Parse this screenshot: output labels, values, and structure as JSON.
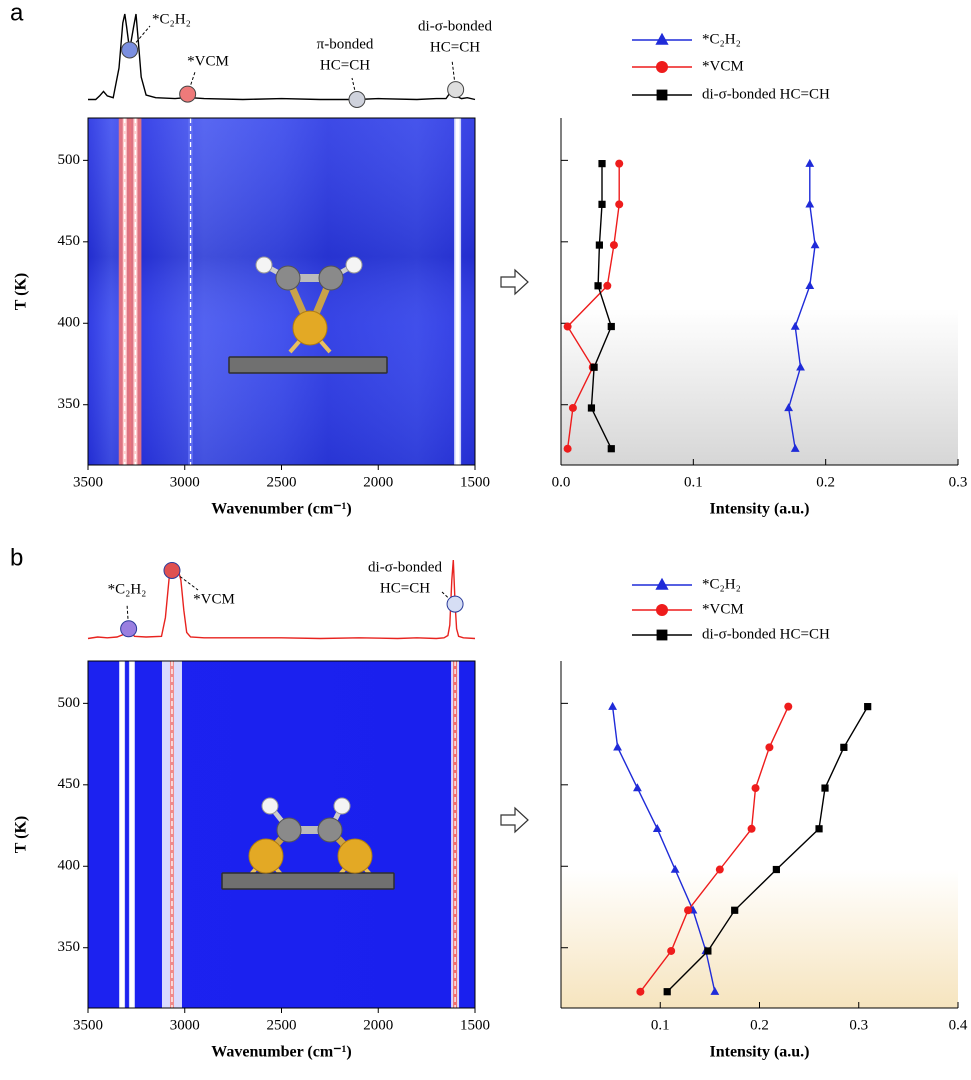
{
  "chart_data": [
    {
      "type": "heatmap",
      "panel_label": "a",
      "xlabel": "Wavenumber (cm⁻¹)",
      "ylabel": "T (K)",
      "xlim": [
        3500,
        1500
      ],
      "xticks": [
        3500,
        3000,
        2500,
        2000,
        1500
      ],
      "ylim": [
        313,
        526
      ],
      "yticks": [
        350,
        400,
        450,
        500
      ],
      "dashed_lines": [
        3310,
        3255,
        2970,
        1590
      ],
      "spectrum": {
        "color": "#000000",
        "x": [
          3500,
          3460,
          3440,
          3420,
          3400,
          3370,
          3340,
          3320,
          3310,
          3300,
          3285,
          3265,
          3252,
          3240,
          3225,
          3200,
          3150,
          3050,
          3000,
          2985,
          2970,
          2900,
          2700,
          2500,
          2300,
          2110,
          2000,
          1800,
          1700,
          1650,
          1630,
          1615,
          1600,
          1590,
          1570,
          1540,
          1500
        ],
        "values": [
          0.05,
          0.05,
          0.09,
          0.14,
          0.09,
          0.07,
          0.4,
          0.9,
          1.0,
          0.85,
          0.6,
          0.85,
          1.0,
          0.7,
          0.3,
          0.1,
          0.07,
          0.06,
          0.07,
          0.11,
          0.07,
          0.06,
          0.05,
          0.06,
          0.05,
          0.05,
          0.06,
          0.05,
          0.06,
          0.06,
          0.12,
          0.18,
          0.16,
          0.08,
          0.06,
          0.07,
          0.05
        ]
      },
      "annotations": [
        {
          "text": [
            "*C₂H₂"
          ],
          "x": 3285,
          "color": "#7b8fe0"
        },
        {
          "text": [
            "*VCM"
          ],
          "x": 2985,
          "color": "#ee7a7a"
        },
        {
          "text": [
            "π-bonded",
            "HC=CH"
          ],
          "x": 2110,
          "color": "#cfd2dc"
        },
        {
          "text": [
            "di-σ-bonded",
            "HC=CH"
          ],
          "x": 1600,
          "color": "#dedede"
        }
      ]
    },
    {
      "type": "line",
      "xlabel": "Intensity (a.u.)",
      "xlim": [
        0,
        0.3
      ],
      "xticks": [
        {
          "value": 0,
          "label": "0.0"
        },
        0.1,
        0.2,
        0.3
      ],
      "ylim": [
        313,
        526
      ],
      "yticks": [
        350,
        400,
        450,
        500
      ],
      "legend": "above",
      "y": [
        323,
        348,
        373,
        398,
        423,
        448,
        473,
        498
      ],
      "series": [
        {
          "name": "*C₂H₂",
          "color": "#1f2bd8",
          "marker": "triangle",
          "values": [
            0.177,
            0.172,
            0.181,
            0.177,
            0.188,
            0.192,
            0.188,
            0.188
          ]
        },
        {
          "name": "*VCM",
          "color": "#ee1c1c",
          "marker": "circle",
          "values": [
            0.005,
            0.009,
            0.024,
            0.005,
            0.035,
            0.04,
            0.044,
            0.044
          ]
        },
        {
          "name": "di-σ-bonded HC=CH",
          "color": "#000000",
          "marker": "square",
          "values": [
            0.038,
            0.023,
            0.025,
            0.038,
            0.028,
            0.029,
            0.031,
            0.031
          ]
        }
      ]
    },
    {
      "type": "heatmap",
      "panel_label": "b",
      "xlabel": "Wavenumber (cm⁻¹)",
      "ylabel": "T (K)",
      "xlim": [
        3500,
        1500
      ],
      "xticks": [
        3500,
        3000,
        2500,
        2000,
        1500
      ],
      "ylim": [
        313,
        526
      ],
      "yticks": [
        350,
        400,
        450,
        500
      ],
      "dashed_lines": [
        3324,
        3273,
        3066,
        1603
      ],
      "spectrum": {
        "color": "#e8231f",
        "x": [
          3500,
          3450,
          3400,
          3350,
          3320,
          3300,
          3290,
          3275,
          3260,
          3200,
          3120,
          3100,
          3080,
          3066,
          3055,
          3045,
          3035,
          3020,
          3005,
          2990,
          2970,
          2900,
          2700,
          2500,
          2300,
          2100,
          1900,
          1800,
          1700,
          1660,
          1640,
          1630,
          1620,
          1612,
          1603,
          1595,
          1585,
          1560,
          1500
        ],
        "values": [
          0.02,
          0.04,
          0.03,
          0.04,
          0.07,
          0.14,
          0.15,
          0.12,
          0.05,
          0.04,
          0.05,
          0.3,
          0.85,
          0.93,
          0.95,
          1.0,
          0.95,
          0.8,
          0.4,
          0.1,
          0.04,
          0.03,
          0.03,
          0.03,
          0.02,
          0.03,
          0.02,
          0.03,
          0.02,
          0.03,
          0.06,
          0.2,
          0.8,
          1.07,
          0.48,
          0.15,
          0.05,
          0.03,
          0.02
        ]
      },
      "annotations": [
        {
          "text": [
            "*C₂H₂"
          ],
          "x": 3290,
          "color": "#9a7fe0"
        },
        {
          "text": [
            "*VCM"
          ],
          "x": 3066,
          "color": "#e05050"
        },
        {
          "text": [
            "di-σ-bonded",
            "HC=CH"
          ],
          "x": 1603,
          "color": "#d6def4"
        }
      ]
    },
    {
      "type": "line",
      "xlabel": "Intensity (a.u.)",
      "xlim": [
        0,
        0.4
      ],
      "xticks": [
        0.1,
        0.2,
        0.3,
        0.4
      ],
      "ylim": [
        313,
        526
      ],
      "yticks": [
        350,
        400,
        450,
        500
      ],
      "legend": "above",
      "y": [
        323,
        348,
        373,
        398,
        423,
        448,
        473,
        498
      ],
      "series": [
        {
          "name": "*C₂H₂",
          "color": "#1f2bd8",
          "marker": "triangle",
          "values": [
            0.155,
            0.146,
            0.133,
            0.115,
            0.097,
            0.077,
            0.057,
            0.052
          ]
        },
        {
          "name": "*VCM",
          "color": "#ee1c1c",
          "marker": "circle",
          "values": [
            0.08,
            0.111,
            0.128,
            0.16,
            0.192,
            0.196,
            0.21,
            0.229
          ]
        },
        {
          "name": "di-σ-bonded HC=CH",
          "color": "#000000",
          "marker": "square",
          "values": [
            0.107,
            0.148,
            0.175,
            0.217,
            0.26,
            0.266,
            0.285,
            0.309
          ]
        }
      ]
    }
  ]
}
